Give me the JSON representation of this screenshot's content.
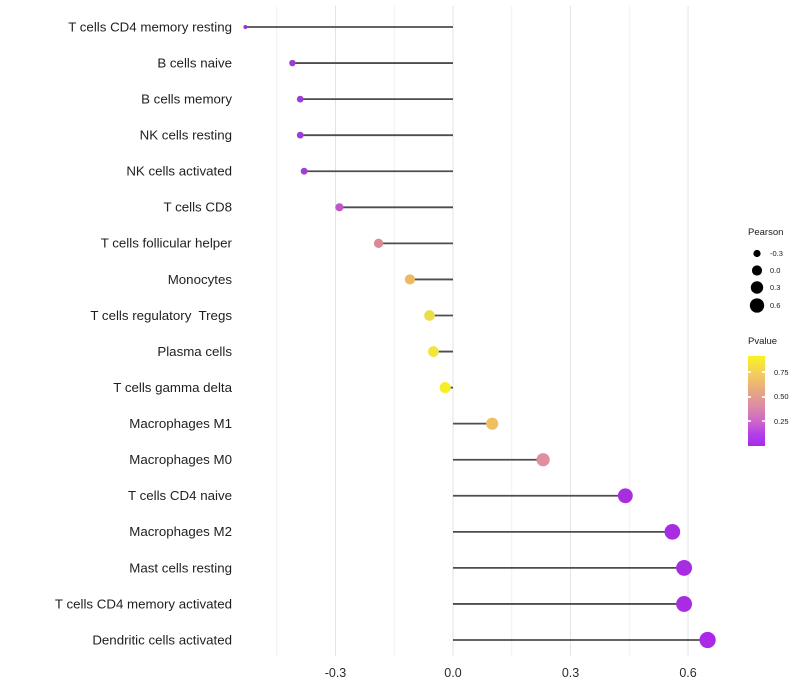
{
  "chart_data": {
    "type": "lollipop",
    "title": "",
    "xlabel": "",
    "ylabel": "",
    "background": "#ffffff",
    "baseline": 0.0,
    "x_axis": {
      "tick_values": [
        -0.3,
        0.0,
        0.3,
        0.6
      ],
      "tick_labels": [
        "-0.3",
        "0.0",
        "0.3",
        "0.6"
      ],
      "minor_tick_values": [
        -0.45,
        -0.15,
        0.15,
        0.45
      ],
      "range": [
        -0.555,
        0.675
      ]
    },
    "grid": {
      "major_color": "#e3e3e3",
      "minor_color": "#f1f1f1",
      "on": true
    },
    "stem_color": "#4d4d4d",
    "rows": [
      {
        "label": "T cells CD4 memory resting",
        "pearson": -0.53,
        "color": "#9334e0"
      },
      {
        "label": "B cells naive",
        "pearson": -0.41,
        "color": "#9c3bd8"
      },
      {
        "label": "B cells memory",
        "pearson": -0.39,
        "color": "#9e3cd6"
      },
      {
        "label": "NK cells resting",
        "pearson": -0.39,
        "color": "#9e3cd6"
      },
      {
        "label": "NK cells activated",
        "pearson": -0.38,
        "color": "#a03fd4"
      },
      {
        "label": "T cells CD8",
        "pearson": -0.29,
        "color": "#c156c6"
      },
      {
        "label": "T cells follicular helper",
        "pearson": -0.19,
        "color": "#dc8a96"
      },
      {
        "label": "Monocytes",
        "pearson": -0.11,
        "color": "#edba60"
      },
      {
        "label": "T cells regulatory  Tregs",
        "pearson": -0.06,
        "color": "#eedd4a"
      },
      {
        "label": "Plasma cells",
        "pearson": -0.05,
        "color": "#f2e63a"
      },
      {
        "label": "T cells gamma delta",
        "pearson": -0.02,
        "color": "#f6ef28"
      },
      {
        "label": "Macrophages M1",
        "pearson": 0.1,
        "color": "#eec05f"
      },
      {
        "label": "Macrophages M0",
        "pearson": 0.23,
        "color": "#e18da2"
      },
      {
        "label": "T cells CD4 naive",
        "pearson": 0.44,
        "color": "#a72ede"
      },
      {
        "label": "Macrophages M2",
        "pearson": 0.56,
        "color": "#a82ce2"
      },
      {
        "label": "Mast cells resting",
        "pearson": 0.59,
        "color": "#a82ce2"
      },
      {
        "label": "T cells CD4 memory activated",
        "pearson": 0.59,
        "color": "#a82ce2"
      },
      {
        "label": "Dendritic cells activated",
        "pearson": 0.65,
        "color": "#aa28e8"
      }
    ],
    "legends": {
      "pearson": {
        "title": "Pearson",
        "dot_color": "#000000",
        "entries": [
          {
            "label": "-0.3",
            "value": -0.3
          },
          {
            "label": "0.0",
            "value": 0.0
          },
          {
            "label": "0.3",
            "value": 0.3
          },
          {
            "label": "0.6",
            "value": 0.6
          }
        ]
      },
      "pvalue": {
        "title": "Pvalue",
        "tick_labels": [
          "0.75",
          "0.50",
          "0.25"
        ],
        "gradient": [
          {
            "color": "#f9f321",
            "pos": "0%"
          },
          {
            "color": "#f3cd5e",
            "pos": "20%"
          },
          {
            "color": "#e8a97f",
            "pos": "38%"
          },
          {
            "color": "#dd8da4",
            "pos": "55%"
          },
          {
            "color": "#cf68c8",
            "pos": "72%"
          },
          {
            "color": "#b13cec",
            "pos": "88%"
          },
          {
            "color": "#a82ae8",
            "pos": "100%"
          }
        ]
      }
    }
  }
}
